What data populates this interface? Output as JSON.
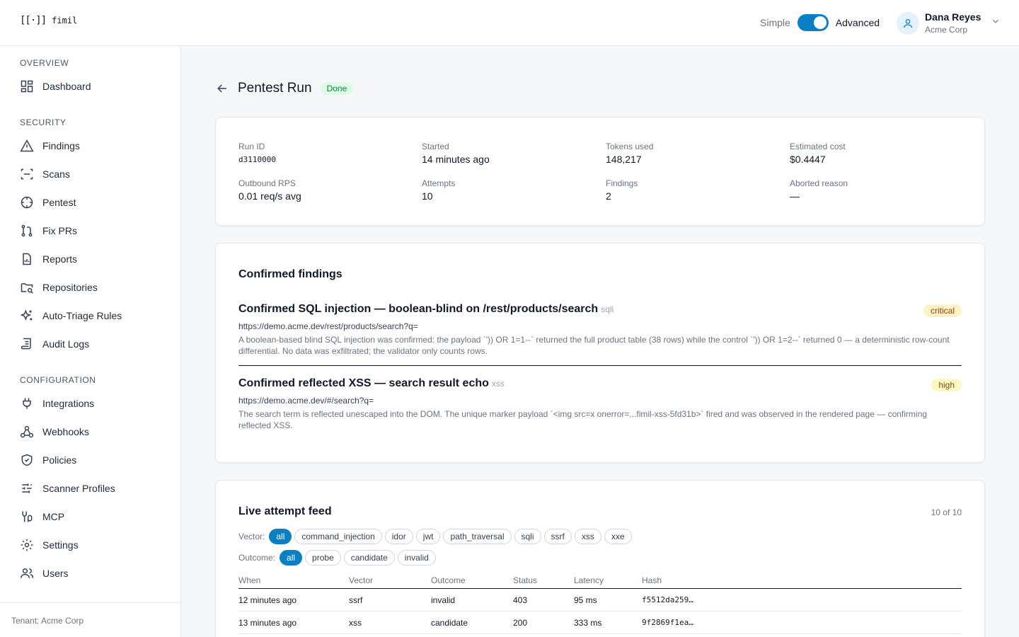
{
  "app": {
    "logo_mark": "[[·]]",
    "logo_text": "fimil"
  },
  "header": {
    "mode_simple": "Simple",
    "mode_advanced": "Advanced",
    "mode_enabled": true,
    "user_name": "Dana Reyes",
    "user_org": "Acme Corp"
  },
  "sidebar": {
    "overview_label": "OVERVIEW",
    "security_label": "SECURITY",
    "configuration_label": "CONFIGURATION",
    "items": {
      "dashboard": "Dashboard",
      "findings": "Findings",
      "scans": "Scans",
      "pentest": "Pentest",
      "fixprs": "Fix PRs",
      "reports": "Reports",
      "repositories": "Repositories",
      "autotriage": "Auto-Triage Rules",
      "auditlogs": "Audit Logs",
      "integrations": "Integrations",
      "webhooks": "Webhooks",
      "policies": "Policies",
      "scannerprofiles": "Scanner Profiles",
      "mcp": "MCP",
      "settings": "Settings",
      "users": "Users"
    },
    "tenant": "Tenant: Acme Corp"
  },
  "page": {
    "title": "Pentest Run",
    "status": "Done"
  },
  "stats": {
    "run_id_label": "Run ID",
    "run_id": "d3110000",
    "started_label": "Started",
    "started": "14 minutes ago",
    "tokens_label": "Tokens used",
    "tokens": "148,217",
    "cost_label": "Estimated cost",
    "cost": "$0.4447",
    "rps_label": "Outbound RPS",
    "rps": "0.01 req/s avg",
    "attempts_label": "Attempts",
    "attempts": "10",
    "findings_label": "Findings",
    "findings": "2",
    "aborted_label": "Aborted reason",
    "aborted": "—"
  },
  "findings": {
    "heading": "Confirmed findings",
    "items": [
      {
        "title": "Confirmed SQL injection — boolean-blind on /rest/products/search",
        "tag": "sqli",
        "severity": "critical",
        "url": "https://demo.acme.dev/rest/products/search?q=",
        "desc": "A boolean-based blind SQL injection was confirmed: the payload `')) OR 1=1--` returned the full product table (38 rows) while the control `')) OR 1=2--` returned 0 — a deterministic row-count differential. No data was exfiltrated; the validator only counts rows."
      },
      {
        "title": "Confirmed reflected XSS — search result echo",
        "tag": "xss",
        "severity": "high",
        "url": "https://demo.acme.dev/#/search?q=",
        "desc": "The search term is reflected unescaped into the DOM. The unique marker payload `<img src=x onerror=...fimil-xss-5fd31b>` fired and was observed in the rendered page — confirming reflected XSS."
      }
    ]
  },
  "feed": {
    "heading": "Live attempt feed",
    "count": "10 of 10",
    "vector_label": "Vector:",
    "vectors": [
      "all",
      "command_injection",
      "idor",
      "jwt",
      "path_traversal",
      "sqli",
      "ssrf",
      "xss",
      "xxe"
    ],
    "outcome_label": "Outcome:",
    "outcomes": [
      "all",
      "probe",
      "candidate",
      "invalid"
    ],
    "columns": [
      "When",
      "Vector",
      "Outcome",
      "Status",
      "Latency",
      "Hash"
    ],
    "rows": [
      [
        "12 minutes ago",
        "ssrf",
        "invalid",
        "403",
        "95 ms",
        "f5512da259…"
      ],
      [
        "13 minutes ago",
        "xss",
        "candidate",
        "200",
        "333 ms",
        "9f2869f1ea…"
      ]
    ]
  },
  "colors": {
    "accent": "#0b7fc4",
    "done_bg": "#dcfce7",
    "done_text": "#15803d",
    "sev_bg": "#fef3c7"
  }
}
